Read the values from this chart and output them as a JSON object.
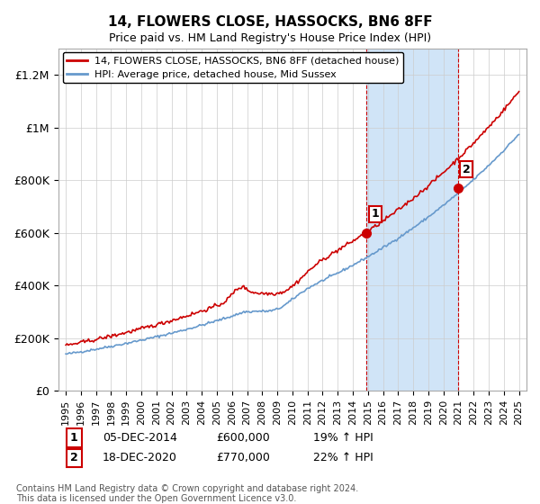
{
  "title": "14, FLOWERS CLOSE, HASSOCKS, BN6 8FF",
  "subtitle": "Price paid vs. HM Land Registry's House Price Index (HPI)",
  "ylabel_ticks": [
    "£0",
    "£200K",
    "£400K",
    "£600K",
    "£800K",
    "£1M",
    "£1.2M"
  ],
  "ytick_vals": [
    0,
    200000,
    400000,
    600000,
    800000,
    1000000,
    1200000
  ],
  "ylim": [
    0,
    1300000
  ],
  "xlim_start": 1994.5,
  "xlim_end": 2025.5,
  "purchase1_date": 2014.92,
  "purchase1_price": 600000,
  "purchase1_label": "1",
  "purchase2_date": 2020.96,
  "purchase2_price": 770000,
  "purchase2_label": "2",
  "shade_start": 2014.92,
  "shade_end": 2020.96,
  "red_line_color": "#cc0000",
  "blue_line_color": "#6699cc",
  "shade_color": "#d0e4f7",
  "legend1": "14, FLOWERS CLOSE, HASSOCKS, BN6 8FF (detached house)",
  "legend2": "HPI: Average price, detached house, Mid Sussex",
  "annotation1": "05-DEC-2014    £600,000       19% ↑ HPI",
  "annotation2": "18-DEC-2020    £770,000       22% ↑ HPI",
  "footer": "Contains HM Land Registry data © Crown copyright and database right 2024.\nThis data is licensed under the Open Government Licence v3.0.",
  "xlabel_years": [
    "1995",
    "1996",
    "1997",
    "1998",
    "1999",
    "2000",
    "2001",
    "2002",
    "2003",
    "2004",
    "2005",
    "2006",
    "2007",
    "2008",
    "2009",
    "2010",
    "2011",
    "2012",
    "2013",
    "2014",
    "2015",
    "2016",
    "2017",
    "2018",
    "2019",
    "2020",
    "2021",
    "2022",
    "2023",
    "2024",
    "2025"
  ]
}
